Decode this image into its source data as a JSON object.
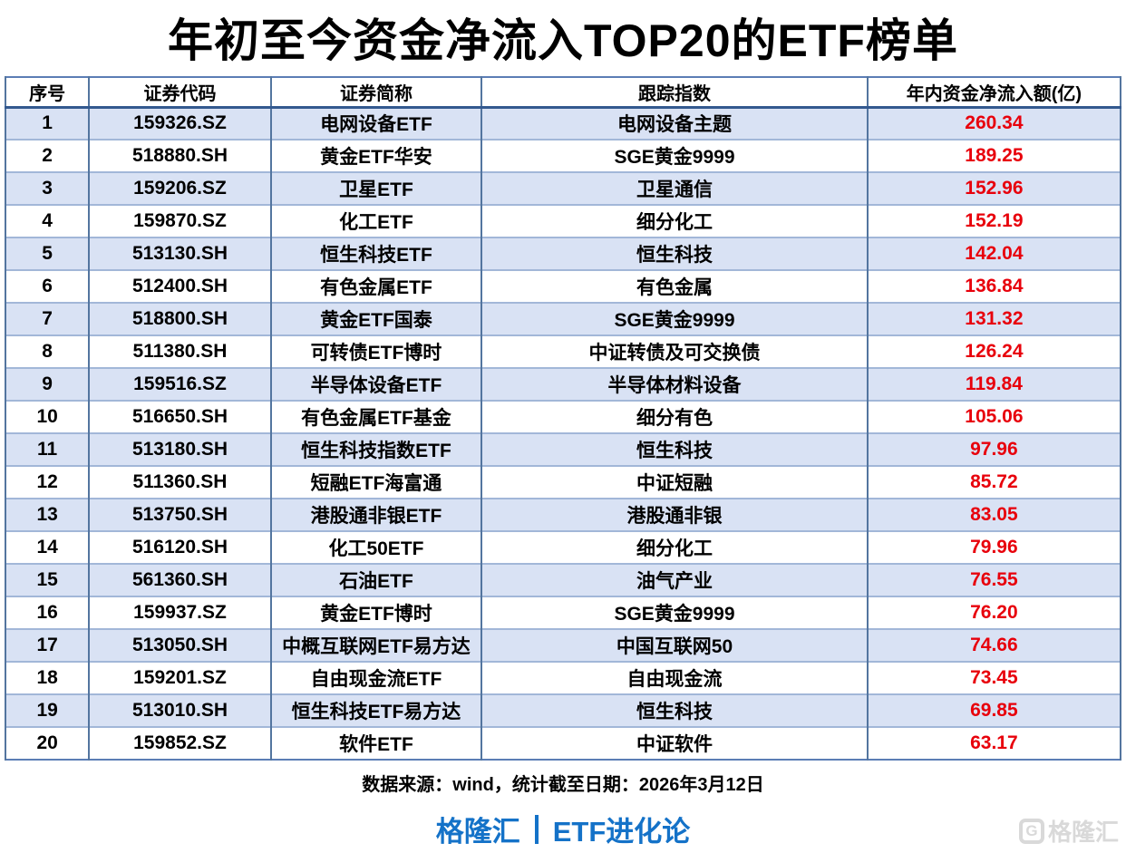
{
  "title": "年初至今资金净流入TOP20的ETF榜单",
  "colors": {
    "row_stripe": "#d9e2f4",
    "value_red": "#e8000b",
    "brand_blue": "#1472c8",
    "border_vertical": "#53759f",
    "border_horizontal": "#a2b7d8",
    "header_rule": "#33598f",
    "watermark_gray": "#d9d9d9"
  },
  "chart_data": {
    "type": "table",
    "title": "年初至今资金净流入TOP20的ETF榜单",
    "columns": [
      "序号",
      "证券代码",
      "证券简称",
      "跟踪指数",
      "年内资金净流入额(亿)"
    ],
    "rows": [
      [
        "1",
        "159326.SZ",
        "电网设备ETF",
        "电网设备主题",
        "260.34"
      ],
      [
        "2",
        "518880.SH",
        "黄金ETF华安",
        "SGE黄金9999",
        "189.25"
      ],
      [
        "3",
        "159206.SZ",
        "卫星ETF",
        "卫星通信",
        "152.96"
      ],
      [
        "4",
        "159870.SZ",
        "化工ETF",
        "细分化工",
        "152.19"
      ],
      [
        "5",
        "513130.SH",
        "恒生科技ETF",
        "恒生科技",
        "142.04"
      ],
      [
        "6",
        "512400.SH",
        "有色金属ETF",
        "有色金属",
        "136.84"
      ],
      [
        "7",
        "518800.SH",
        "黄金ETF国泰",
        "SGE黄金9999",
        "131.32"
      ],
      [
        "8",
        "511380.SH",
        "可转债ETF博时",
        "中证转债及可交换债",
        "126.24"
      ],
      [
        "9",
        "159516.SZ",
        "半导体设备ETF",
        "半导体材料设备",
        "119.84"
      ],
      [
        "10",
        "516650.SH",
        "有色金属ETF基金",
        "细分有色",
        "105.06"
      ],
      [
        "11",
        "513180.SH",
        "恒生科技指数ETF",
        "恒生科技",
        "97.96"
      ],
      [
        "12",
        "511360.SH",
        "短融ETF海富通",
        "中证短融",
        "85.72"
      ],
      [
        "13",
        "513750.SH",
        "港股通非银ETF",
        "港股通非银",
        "83.05"
      ],
      [
        "14",
        "516120.SH",
        "化工50ETF",
        "细分化工",
        "79.96"
      ],
      [
        "15",
        "561360.SH",
        "石油ETF",
        "油气产业",
        "76.55"
      ],
      [
        "16",
        "159937.SZ",
        "黄金ETF博时",
        "SGE黄金9999",
        "76.20"
      ],
      [
        "17",
        "513050.SH",
        "中概互联网ETF易方达",
        "中国互联网50",
        "74.66"
      ],
      [
        "18",
        "159201.SZ",
        "自由现金流ETF",
        "自由现金流",
        "73.45"
      ],
      [
        "19",
        "513010.SH",
        "恒生科技ETF易方达",
        "恒生科技",
        "69.85"
      ],
      [
        "20",
        "159852.SZ",
        "软件ETF",
        "中证软件",
        "63.17"
      ]
    ]
  },
  "footer": {
    "source_note": "数据来源：wind，统计截至日期：2026年3月12日",
    "brand_left": "格隆汇",
    "brand_right": "ETF进化论"
  },
  "watermark": {
    "logo_letter": "G",
    "text": "格隆汇"
  }
}
